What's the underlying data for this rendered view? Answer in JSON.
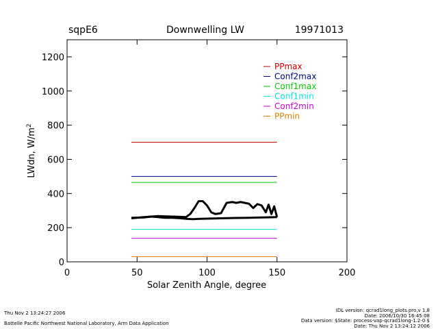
{
  "header": {
    "site": "sqpE6",
    "title": "Downwelling LW",
    "date": "19971013"
  },
  "chart_data": {
    "type": "line",
    "title": "Downwelling LW",
    "xlabel": "Solar Zenith Angle, degree",
    "ylabel_base": "LWdn, W/m",
    "ylabel_sup": "2",
    "xlim": [
      0,
      200
    ],
    "ylim": [
      0,
      1300
    ],
    "xticks": [
      0,
      50,
      100,
      150,
      200
    ],
    "yticks": [
      0,
      200,
      400,
      600,
      800,
      1000,
      1200
    ],
    "legend_position": "top-right",
    "series": [
      {
        "name": "PPmax",
        "color": "#cc0000",
        "x": [
          46,
          150
        ],
        "y": [
          700,
          700
        ]
      },
      {
        "name": "Conf2max",
        "color": "#00008b",
        "x": [
          46,
          150
        ],
        "y": [
          500,
          500
        ]
      },
      {
        "name": "Conf1max",
        "color": "#00cc00",
        "x": [
          46,
          150
        ],
        "y": [
          465,
          465
        ]
      },
      {
        "name": "Conf1min",
        "color": "#00e5e5",
        "x": [
          46,
          150
        ],
        "y": [
          190,
          190
        ]
      },
      {
        "name": "Conf2min",
        "color": "#cc00cc",
        "x": [
          46,
          150
        ],
        "y": [
          138,
          138
        ]
      },
      {
        "name": "PPmin",
        "color": "#e08000",
        "x": [
          46,
          150
        ],
        "y": [
          30,
          30
        ]
      }
    ],
    "measured": {
      "name": "LWdn",
      "color": "#000000",
      "lower_branch": {
        "x": [
          46,
          55,
          60,
          65,
          70,
          75,
          80,
          85,
          90,
          95,
          100,
          110,
          120,
          130,
          140,
          150
        ],
        "y": [
          258,
          260,
          265,
          262,
          258,
          258,
          256,
          252,
          250,
          252,
          253,
          255,
          257,
          258,
          260,
          262
        ]
      },
      "upper_branch": {
        "x": [
          46,
          55,
          65,
          75,
          85,
          88,
          91,
          94,
          97,
          100,
          103,
          106,
          110,
          114,
          118,
          121,
          124,
          127,
          130,
          133,
          136,
          139,
          142,
          144,
          146,
          148,
          150
        ],
        "y": [
          255,
          262,
          268,
          265,
          262,
          280,
          315,
          355,
          355,
          330,
          290,
          280,
          285,
          345,
          350,
          345,
          350,
          345,
          340,
          315,
          338,
          330,
          290,
          335,
          280,
          325,
          262
        ]
      }
    }
  },
  "footer": {
    "left_line1": "Thu Nov  2 13:24:27 2006",
    "left_line2": "Battelle Pacific Northwest National Laboratory, Arm Data Application",
    "right_lines": [
      "IDL version: qcrad1long_plots.pro,v 1.8",
      "Date: 2006/10/30 16:45:08",
      "Data version: $State: process-vap-qcrad1long-1.2-0 $",
      "Date: Thu Nov  2 13:24:12 2006"
    ]
  }
}
